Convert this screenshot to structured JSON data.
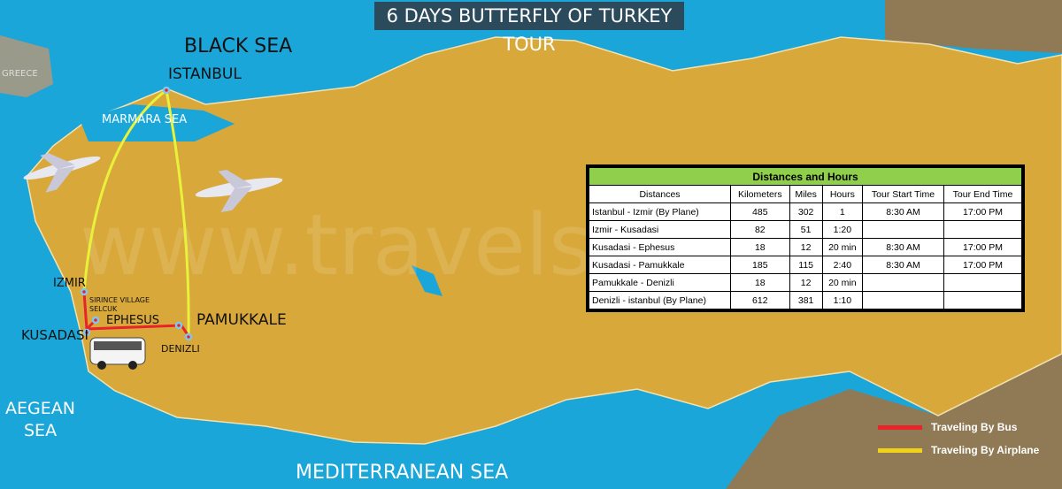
{
  "title": "6 DAYS BUTTERFLY OF TURKEY TOUR",
  "labels": {
    "black_sea": "BLACK SEA",
    "marmara_sea": "MARMARA SEA",
    "aegean_sea": "AEGEAN\nSEA",
    "aegean_1": "AEGEAN",
    "aegean_2": "SEA",
    "mediterranean_sea": "MEDITERRANEAN SEA",
    "greece": "GREECE",
    "istanbul": "ISTANBUL",
    "izmir": "IZMIR",
    "sirince": "SIRINCE VILLAGE",
    "selcuk": "SELCUK",
    "ephesus": "EPHESUS",
    "kusadasi": "KUSADASI",
    "pamukkale": "PAMUKKALE",
    "denizli": "DENIZLI"
  },
  "watermark": "www.travelshop",
  "colors": {
    "sea": "#1aa6d9",
    "land": "#d9a83a",
    "bus_route": "#e8232a",
    "plane_route": "#f0f020",
    "table_header": "#8fcf4c",
    "title_bg": "#2b4a5c"
  },
  "table": {
    "title": "Distances and Hours",
    "headers": [
      "Distances",
      "Kilometers",
      "Miles",
      "Hours",
      "Tour Start Time",
      "Tour End Time"
    ],
    "rows": [
      [
        "Istanbul - Izmir (By Plane)",
        "485",
        "302",
        "1",
        "8:30 AM",
        "17:00 PM"
      ],
      [
        "Izmir - Kusadasi",
        "82",
        "51",
        "1:20",
        "",
        ""
      ],
      [
        "Kusadasi - Ephesus",
        "18",
        "12",
        "20 min",
        "8:30 AM",
        "17:00 PM"
      ],
      [
        "Kusadasi - Pamukkale",
        "185",
        "115",
        "2:40",
        "8:30 AM",
        "17:00 PM"
      ],
      [
        "Pamukkale - Denizli",
        "18",
        "12",
        "20 min",
        "",
        ""
      ],
      [
        "Denizli - istanbul (By Plane)",
        "612",
        "381",
        "1:10",
        "",
        ""
      ]
    ]
  },
  "legend": [
    {
      "label": "Traveling By Bus",
      "color": "#e8232a"
    },
    {
      "label": "Traveling By Airplane",
      "color": "#f0d21a"
    }
  ],
  "icons": [
    "airplane-icon",
    "airplane-icon",
    "bus-icon",
    "location-marker-icon"
  ]
}
